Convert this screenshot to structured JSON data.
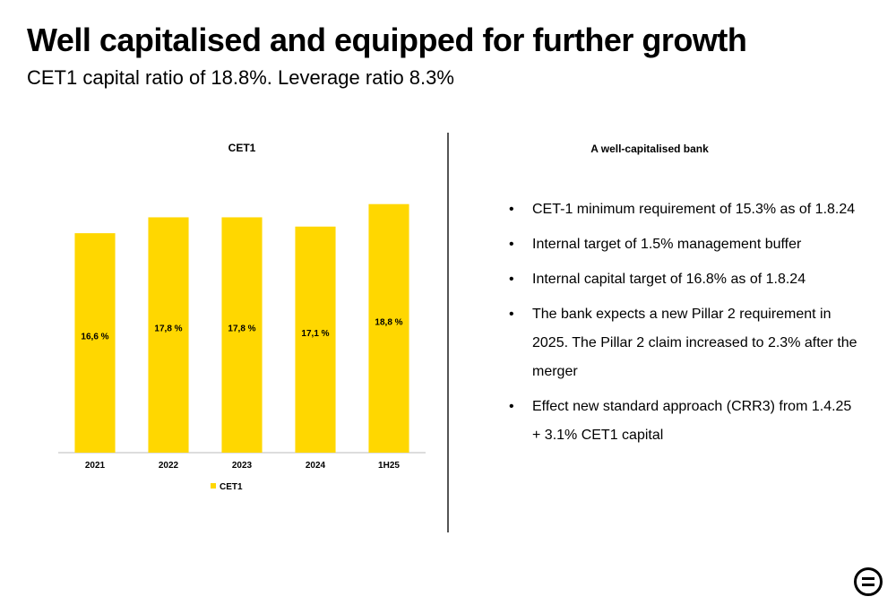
{
  "header": {
    "title": "Well capitalised and equipped for further growth",
    "subtitle": "CET1 capital ratio of 18.8%. Leverage ratio 8.3%"
  },
  "chart_data": {
    "type": "bar",
    "title": "CET1",
    "categories": [
      "2021",
      "2022",
      "2023",
      "2024",
      "1H25"
    ],
    "series": [
      {
        "name": "CET1",
        "values": [
          16.6,
          17.8,
          17.8,
          17.1,
          18.8
        ],
        "labels": [
          "16,6 %",
          "17,8 %",
          "17,8 %",
          "17,1 %",
          "18,8 %"
        ]
      }
    ],
    "color": "#FFD700",
    "ylim": [
      0,
      20
    ],
    "grid": false,
    "legend": "bottom-center"
  },
  "right": {
    "title": "A well-capitalised bank",
    "bullets": [
      "CET-1 minimum requirement of 15.3% as of 1.8.24",
      "Internal target of 1.5% management buffer",
      "Internal capital target of 16.8% as of 1.8.24",
      "The bank expects a new Pillar 2 requirement in 2025. The Pillar 2 claim increased to 2.3% after the merger",
      "Effect new standard approach (CRR3) from 1.4.25 + 3.1% CET1 capital"
    ]
  },
  "logo_icon": "circle-equals-logo-icon"
}
